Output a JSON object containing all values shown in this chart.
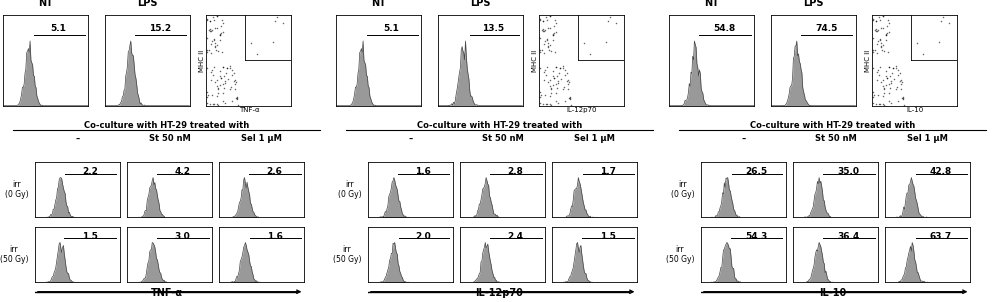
{
  "panels": [
    {
      "top_labels": [
        "NT",
        "LPS"
      ],
      "top_values": [
        "5.1",
        "15.2"
      ],
      "scatter_ylabel": "MHC II",
      "scatter_xlabel": "TNF-α",
      "col_labels": [
        "–",
        "St 50 nM",
        "Sel 1 μM"
      ],
      "row_labels": [
        "irr\n(0 Gy)",
        "irr\n(50 Gy)"
      ],
      "grid_values": [
        [
          "2.2",
          "4.2",
          "2.6"
        ],
        [
          "1.5",
          "3.0",
          "1.6"
        ]
      ],
      "bottom_label": "TNF-α"
    },
    {
      "top_labels": [
        "NT",
        "LPS"
      ],
      "top_values": [
        "5.1",
        "13.5"
      ],
      "scatter_ylabel": "MHC II",
      "scatter_xlabel": "IL-12p70",
      "col_labels": [
        "–",
        "St 50 nM",
        "Sel 1 μM"
      ],
      "row_labels": [
        "irr\n(0 Gy)",
        "irr\n(50 Gy)"
      ],
      "grid_values": [
        [
          "1.6",
          "2.8",
          "1.7"
        ],
        [
          "2.0",
          "2.4",
          "1.5"
        ]
      ],
      "bottom_label": "IL-12p70"
    },
    {
      "top_labels": [
        "NT",
        "LPS"
      ],
      "top_values": [
        "54.8",
        "74.5"
      ],
      "scatter_ylabel": "MHC II",
      "scatter_xlabel": "IL-10",
      "col_labels": [
        "–",
        "St 50 nM",
        "Sel 1 μM"
      ],
      "row_labels": [
        "irr\n(0 Gy)",
        "irr\n(50 Gy)"
      ],
      "grid_values": [
        [
          "26.5",
          "35.0",
          "42.8"
        ],
        [
          "54.3",
          "36.4",
          "63.7"
        ]
      ],
      "bottom_label": "IL-10"
    }
  ],
  "coculture_text": "Co-culture with HT-29 treated with",
  "hist_color": "#999999",
  "hist_edge_color": "#444444"
}
